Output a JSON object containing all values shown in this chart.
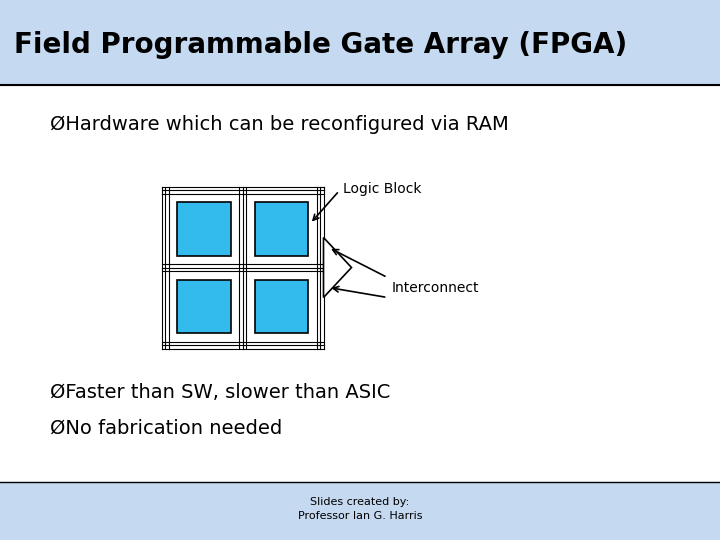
{
  "title": "Field Programmable Gate Array (FPGA)",
  "title_bg": "#c5d9f1",
  "footer_bg": "#c5d9f1",
  "body_bg": "#ffffff",
  "bullet1": "ØHardware which can be reconfigured via RAM",
  "bullet2": "ØFaster than SW, slower than ASIC",
  "bullet3": "ØNo fabrication needed",
  "label_logic": "Logic Block",
  "label_interconnect": "Interconnect",
  "footer_line1": "Slides created by:",
  "footer_line2": "Professor Ian G. Harris",
  "block_color": "#33bbee",
  "block_edge": "#000000",
  "grid_color": "#000000",
  "arrow_color": "#000000",
  "title_fontsize": 20,
  "body_fontsize": 14,
  "label_fontsize": 10,
  "footer_fontsize": 8
}
